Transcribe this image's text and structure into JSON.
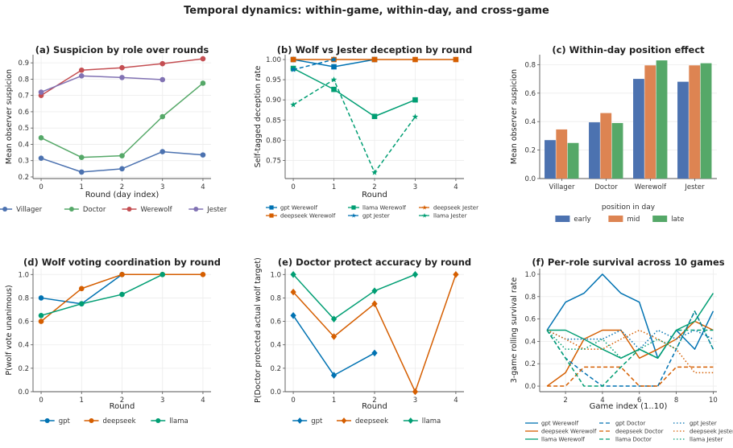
{
  "suptitle": "Temporal dynamics: within-game, within-day, and cross-game",
  "colors": {
    "villager": "#4c72b0",
    "doctor": "#55a868",
    "werewolf": "#c44e52",
    "jester": "#8172b3",
    "early": "#4c72b0",
    "mid": "#dd8452",
    "late": "#55a868",
    "gpt": "#0072b2",
    "deepseek": "#d55e00",
    "llama": "#009e73"
  },
  "chart_data": [
    {
      "id": "a",
      "type": "line",
      "title": "(a) Suspicion by role over rounds",
      "xlabel": "Round (day index)",
      "ylabel": "Mean observer suspicion",
      "xlim": [
        -0.2,
        4.2
      ],
      "ylim": [
        0.19,
        0.95
      ],
      "xticks": [
        0,
        1,
        2,
        3,
        4
      ],
      "yticks": [
        0.2,
        0.3,
        0.4,
        0.5,
        0.6,
        0.7,
        0.8,
        0.9
      ],
      "ytick_labels": [
        "0.2",
        "0.3",
        "0.4",
        "0.5",
        "0.6",
        "0.7",
        "0.8",
        "0.9"
      ],
      "legend": "bottom",
      "series": [
        {
          "name": "Villager",
          "color_key": "villager",
          "marker": "circle",
          "dash": "solid",
          "x": [
            0,
            1,
            2,
            3,
            4
          ],
          "y": [
            0.315,
            0.23,
            0.25,
            0.355,
            0.335
          ]
        },
        {
          "name": "Doctor",
          "color_key": "doctor",
          "marker": "circle",
          "dash": "solid",
          "x": [
            0,
            1,
            2,
            3,
            4
          ],
          "y": [
            0.44,
            0.32,
            0.33,
            0.57,
            0.775
          ]
        },
        {
          "name": "Werewolf",
          "color_key": "werewolf",
          "marker": "circle",
          "dash": "solid",
          "x": [
            0,
            1,
            2,
            3,
            4
          ],
          "y": [
            0.7,
            0.855,
            0.87,
            0.895,
            0.925
          ]
        },
        {
          "name": "Jester",
          "color_key": "jester",
          "marker": "circle",
          "dash": "solid",
          "x": [
            0,
            1,
            2,
            3
          ],
          "y": [
            0.72,
            0.82,
            0.81,
            0.797
          ]
        }
      ]
    },
    {
      "id": "b",
      "type": "line",
      "title": "(b) Wolf vs Jester deception by round",
      "xlabel": "Round",
      "ylabel": "Self-tagged deception rate",
      "xlim": [
        -0.2,
        4.2
      ],
      "ylim": [
        0.705,
        1.012
      ],
      "xticks": [
        0,
        1,
        2,
        3,
        4
      ],
      "yticks": [
        0.75,
        0.8,
        0.85,
        0.9,
        0.95,
        1.0
      ],
      "ytick_labels": [
        "0.75",
        "0.80",
        "0.85",
        "0.90",
        "0.95",
        "1.00"
      ],
      "legend": "bottom",
      "series": [
        {
          "name": "gpt Werewolf",
          "color_key": "gpt",
          "marker": "square",
          "dash": "solid",
          "x": [
            0,
            1,
            2
          ],
          "y": [
            1.0,
            0.982,
            1.0
          ]
        },
        {
          "name": "deepseek Werewolf",
          "color_key": "deepseek",
          "marker": "square",
          "dash": "solid",
          "x": [
            0,
            1,
            2,
            3,
            4
          ],
          "y": [
            1.0,
            1.0,
            1.0,
            1.0,
            1.0
          ]
        },
        {
          "name": "llama Werewolf",
          "color_key": "llama",
          "marker": "square",
          "dash": "solid",
          "x": [
            0,
            1,
            2,
            3
          ],
          "y": [
            0.978,
            0.926,
            0.859,
            0.9
          ]
        },
        {
          "name": "gpt Jester",
          "color_key": "gpt",
          "marker": "star",
          "dash": "dashed",
          "x": [
            0,
            1
          ],
          "y": [
            0.975,
            1.0
          ]
        },
        {
          "name": "deepseek Jester",
          "color_key": "deepseek",
          "marker": "star",
          "dash": "dashed",
          "x": [
            0
          ],
          "y": [
            1.0
          ]
        },
        {
          "name": "llama Jester",
          "color_key": "llama",
          "marker": "star",
          "dash": "dashed",
          "x": [
            0,
            1,
            2,
            3
          ],
          "y": [
            0.888,
            0.95,
            0.72,
            0.858
          ]
        }
      ]
    },
    {
      "id": "c",
      "type": "bar",
      "title": "(c) Within-day position effect",
      "xlabel": "",
      "ylabel": "Mean observer suspicion",
      "ylim": [
        0,
        0.87
      ],
      "yticks": [
        0.0,
        0.2,
        0.4,
        0.6,
        0.8
      ],
      "ytick_labels": [
        "0.0",
        "0.2",
        "0.4",
        "0.6",
        "0.8"
      ],
      "categories": [
        "Villager",
        "Doctor",
        "Werewolf",
        "Jester"
      ],
      "legend_title": "position in day",
      "legend": "bottom",
      "series": [
        {
          "name": "early",
          "color_key": "early",
          "values": [
            0.27,
            0.395,
            0.7,
            0.68
          ]
        },
        {
          "name": "mid",
          "color_key": "mid",
          "values": [
            0.345,
            0.46,
            0.795,
            0.795
          ]
        },
        {
          "name": "late",
          "color_key": "late",
          "values": [
            0.25,
            0.39,
            0.83,
            0.81
          ]
        }
      ]
    },
    {
      "id": "d",
      "type": "line",
      "title": "(d) Wolf voting coordination by round",
      "xlabel": "Round",
      "ylabel": "P(wolf vote unanimous)",
      "xlim": [
        -0.2,
        4.2
      ],
      "ylim": [
        0,
        1.05
      ],
      "xticks": [
        0,
        1,
        2,
        3,
        4
      ],
      "yticks": [
        0.0,
        0.2,
        0.4,
        0.6,
        0.8,
        1.0
      ],
      "ytick_labels": [
        "0.0",
        "0.2",
        "0.4",
        "0.6",
        "0.8",
        "1.0"
      ],
      "legend": "bottom",
      "series": [
        {
          "name": "gpt",
          "color_key": "gpt",
          "marker": "circle",
          "dash": "solid",
          "x": [
            0,
            1,
            2
          ],
          "y": [
            0.8,
            0.75,
            1.0
          ]
        },
        {
          "name": "deepseek",
          "color_key": "deepseek",
          "marker": "circle",
          "dash": "solid",
          "x": [
            0,
            1,
            2,
            3,
            4
          ],
          "y": [
            0.6,
            0.88,
            1.0,
            1.0,
            1.0
          ]
        },
        {
          "name": "llama",
          "color_key": "llama",
          "marker": "circle",
          "dash": "solid",
          "x": [
            0,
            1,
            2,
            3
          ],
          "y": [
            0.65,
            0.75,
            0.83,
            1.0
          ]
        }
      ]
    },
    {
      "id": "e",
      "type": "line",
      "title": "(e) Doctor protect accuracy by round",
      "xlabel": "Round",
      "ylabel": "P(Doctor protected actual wolf target)",
      "xlim": [
        -0.2,
        4.2
      ],
      "ylim": [
        0,
        1.05
      ],
      "xticks": [
        0,
        1,
        2,
        3,
        4
      ],
      "yticks": [
        0.0,
        0.2,
        0.4,
        0.6,
        0.8,
        1.0
      ],
      "ytick_labels": [
        "0.0",
        "0.2",
        "0.4",
        "0.6",
        "0.8",
        "1.0"
      ],
      "legend": "bottom",
      "series": [
        {
          "name": "gpt",
          "color_key": "gpt",
          "marker": "diamond",
          "dash": "solid",
          "x": [
            0,
            1,
            2
          ],
          "y": [
            0.65,
            0.14,
            0.33
          ]
        },
        {
          "name": "deepseek",
          "color_key": "deepseek",
          "marker": "diamond",
          "dash": "solid",
          "x": [
            0,
            1,
            2,
            3,
            4
          ],
          "y": [
            0.85,
            0.47,
            0.75,
            0.0,
            1.0
          ]
        },
        {
          "name": "llama",
          "color_key": "llama",
          "marker": "diamond",
          "dash": "solid",
          "x": [
            0,
            1,
            2,
            3
          ],
          "y": [
            1.0,
            0.62,
            0.86,
            1.0
          ]
        }
      ]
    },
    {
      "id": "f",
      "type": "line",
      "title": "(f) Per-role survival across 10 games",
      "xlabel": "Game index (1..10)",
      "ylabel": "3-game rolling survival rate",
      "xlim": [
        0.6,
        10.2
      ],
      "ylim": [
        -0.05,
        1.05
      ],
      "xticks": [
        2,
        4,
        6,
        8,
        10
      ],
      "yticks": [
        0.0,
        0.2,
        0.4,
        0.6,
        0.8,
        1.0
      ],
      "ytick_labels": [
        "0.0",
        "0.2",
        "0.4",
        "0.6",
        "0.8",
        "1.0"
      ],
      "legend": "bottom",
      "series": [
        {
          "name": "gpt Werewolf",
          "color_key": "gpt",
          "marker": "none",
          "dash": "solid",
          "x": [
            1,
            2,
            3,
            4,
            5,
            6,
            7,
            8,
            9,
            10
          ],
          "y": [
            0.5,
            0.75,
            0.83,
            1.0,
            0.83,
            0.75,
            0.25,
            0.5,
            0.33,
            0.67
          ]
        },
        {
          "name": "deepseek Werewolf",
          "color_key": "deepseek",
          "marker": "none",
          "dash": "solid",
          "x": [
            1,
            2,
            3,
            4,
            5,
            6,
            7,
            8,
            9,
            10
          ],
          "y": [
            0.0,
            0.12,
            0.42,
            0.5,
            0.5,
            0.25,
            0.33,
            0.42,
            0.58,
            0.5
          ]
        },
        {
          "name": "llama Werewolf",
          "color_key": "llama",
          "marker": "none",
          "dash": "solid",
          "x": [
            1,
            2,
            3,
            4,
            5,
            6,
            7,
            8,
            9,
            10
          ],
          "y": [
            0.5,
            0.5,
            0.42,
            0.33,
            0.25,
            0.33,
            0.25,
            0.5,
            0.58,
            0.83
          ]
        },
        {
          "name": "gpt Doctor",
          "color_key": "gpt",
          "marker": "none",
          "dash": "dashed",
          "x": [
            1,
            2,
            3,
            4,
            5,
            6,
            7,
            8,
            9,
            10
          ],
          "y": [
            0.5,
            0.25,
            0.12,
            0.0,
            0.0,
            0.0,
            0.0,
            0.33,
            0.67,
            0.33
          ]
        },
        {
          "name": "deepseek Doctor",
          "color_key": "deepseek",
          "marker": "none",
          "dash": "dashed",
          "x": [
            1,
            2,
            3,
            4,
            5,
            6,
            7,
            8,
            9,
            10
          ],
          "y": [
            0.0,
            0.0,
            0.17,
            0.17,
            0.17,
            0.0,
            0.0,
            0.17,
            0.17,
            0.17
          ]
        },
        {
          "name": "llama Doctor",
          "color_key": "llama",
          "marker": "none",
          "dash": "dashed",
          "x": [
            1,
            2,
            3,
            4,
            5,
            6,
            7,
            8,
            9,
            10
          ],
          "y": [
            0.5,
            0.25,
            0.0,
            0.0,
            0.17,
            0.33,
            0.25,
            0.5,
            0.5,
            0.5
          ]
        },
        {
          "name": "gpt Jester",
          "color_key": "gpt",
          "marker": "none",
          "dash": "dotted",
          "x": [
            1,
            2,
            3,
            4,
            5,
            6,
            7,
            8,
            9,
            10
          ],
          "y": [
            0.5,
            0.42,
            0.42,
            0.42,
            0.5,
            0.33,
            0.5,
            0.42,
            0.5,
            0.42
          ]
        },
        {
          "name": "deepseek Jester",
          "color_key": "deepseek",
          "marker": "none",
          "dash": "dotted",
          "x": [
            1,
            2,
            3,
            4,
            5,
            6,
            7,
            8,
            9,
            10
          ],
          "y": [
            0.5,
            0.42,
            0.33,
            0.33,
            0.42,
            0.5,
            0.42,
            0.33,
            0.12,
            0.12
          ]
        },
        {
          "name": "llama Jester",
          "color_key": "llama",
          "marker": "none",
          "dash": "dotted",
          "x": [
            1,
            2,
            3,
            4,
            5,
            6,
            7,
            8,
            9,
            10
          ],
          "y": [
            0.5,
            0.33,
            0.33,
            0.42,
            0.25,
            0.33,
            0.42,
            0.33,
            0.67,
            0.33
          ]
        }
      ]
    }
  ]
}
